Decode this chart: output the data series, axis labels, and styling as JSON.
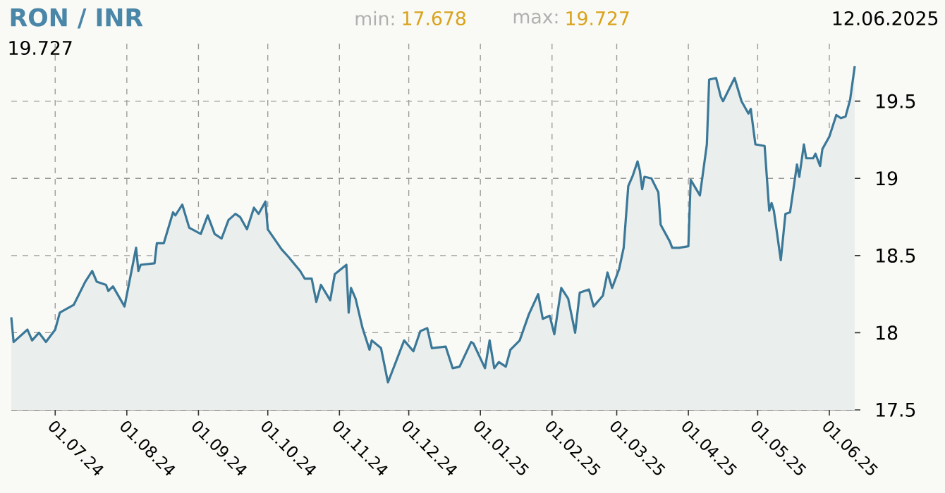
{
  "chart_data": {
    "type": "area",
    "title": "RON / INR",
    "annotations": [
      "min:",
      "17.678",
      "max:",
      "19.727",
      "12.06.2025",
      "19.727"
    ],
    "x": [
      "2024-06-12",
      "2024-06-13",
      "2024-06-19",
      "2024-06-21",
      "2024-06-24",
      "2024-06-27",
      "2024-07-01",
      "2024-07-03",
      "2024-07-09",
      "2024-07-14",
      "2024-07-17",
      "2024-07-19",
      "2024-07-23",
      "2024-07-24",
      "2024-07-26",
      "2024-07-31",
      "2024-08-05",
      "2024-08-06",
      "2024-08-07",
      "2024-08-13",
      "2024-08-14",
      "2024-08-17",
      "2024-08-21",
      "2024-08-22",
      "2024-08-25",
      "2024-08-28",
      "2024-09-02",
      "2024-09-05",
      "2024-09-08",
      "2024-09-11",
      "2024-09-14",
      "2024-09-17",
      "2024-09-19",
      "2024-09-22",
      "2024-09-25",
      "2024-09-27",
      "2024-09-30",
      "2024-10-01",
      "2024-10-07",
      "2024-10-10",
      "2024-10-15",
      "2024-10-17",
      "2024-10-20",
      "2024-10-22",
      "2024-10-24",
      "2024-10-28",
      "2024-10-30",
      "2024-11-04",
      "2024-11-05",
      "2024-11-06",
      "2024-11-08",
      "2024-11-11",
      "2024-11-14",
      "2024-11-15",
      "2024-11-19",
      "2024-11-22",
      "2024-11-29",
      "2024-12-03",
      "2024-12-06",
      "2024-12-09",
      "2024-12-11",
      "2024-12-17",
      "2024-12-20",
      "2024-12-23",
      "2024-12-28",
      "2024-12-29",
      "2025-01-03",
      "2025-01-05",
      "2025-01-07",
      "2025-01-09",
      "2025-01-12",
      "2025-01-14",
      "2025-01-18",
      "2025-01-22",
      "2025-01-26",
      "2025-01-28",
      "2025-01-31",
      "2025-02-02",
      "2025-02-05",
      "2025-02-08",
      "2025-02-11",
      "2025-02-13",
      "2025-02-17",
      "2025-02-19",
      "2025-02-23",
      "2025-02-25",
      "2025-02-27",
      "2025-03-02",
      "2025-03-04",
      "2025-03-06",
      "2025-03-08",
      "2025-03-10",
      "2025-03-11",
      "2025-03-12",
      "2025-03-13",
      "2025-03-16",
      "2025-03-19",
      "2025-03-20",
      "2025-03-24",
      "2025-03-25",
      "2025-03-28",
      "2025-04-01",
      "2025-04-02",
      "2025-04-06",
      "2025-04-09",
      "2025-04-10",
      "2025-04-13",
      "2025-04-15",
      "2025-04-16",
      "2025-04-21",
      "2025-04-24",
      "2025-04-27",
      "2025-04-28",
      "2025-04-30",
      "2025-05-04",
      "2025-05-06",
      "2025-05-07",
      "2025-05-08",
      "2025-05-11",
      "2025-05-13",
      "2025-05-15",
      "2025-05-18",
      "2025-05-19",
      "2025-05-21",
      "2025-05-22",
      "2025-05-25",
      "2025-05-26",
      "2025-05-28",
      "2025-05-29",
      "2025-06-01",
      "2025-06-04",
      "2025-06-06",
      "2025-06-08",
      "2025-06-10",
      "2025-06-12"
    ],
    "series": [
      {
        "color": "#3b7898",
        "values": [
          18.1,
          17.94,
          18.02,
          17.95,
          18.0,
          17.94,
          18.02,
          18.13,
          18.18,
          18.33,
          18.4,
          18.33,
          18.31,
          18.27,
          18.3,
          18.17,
          18.55,
          18.4,
          18.44,
          18.45,
          18.58,
          18.58,
          18.78,
          18.76,
          18.83,
          18.68,
          18.64,
          18.76,
          18.64,
          18.61,
          18.73,
          18.77,
          18.75,
          18.67,
          18.81,
          18.77,
          18.85,
          18.67,
          18.54,
          18.49,
          18.4,
          18.35,
          18.35,
          18.2,
          18.31,
          18.21,
          18.38,
          18.44,
          18.13,
          18.29,
          18.22,
          18.03,
          17.89,
          17.95,
          17.9,
          17.678,
          17.95,
          17.88,
          18.01,
          18.03,
          17.9,
          17.91,
          17.77,
          17.78,
          17.94,
          17.93,
          17.77,
          17.95,
          17.77,
          17.81,
          17.78,
          17.89,
          17.95,
          18.12,
          18.25,
          18.09,
          18.11,
          17.99,
          18.29,
          18.22,
          18.0,
          18.26,
          18.28,
          18.17,
          18.24,
          18.39,
          18.29,
          18.41,
          18.55,
          18.95,
          19.02,
          19.11,
          19.05,
          18.93,
          19.01,
          19.0,
          18.91,
          18.7,
          18.59,
          18.55,
          18.55,
          18.56,
          18.99,
          18.89,
          19.22,
          19.64,
          19.65,
          19.53,
          19.5,
          19.65,
          19.5,
          19.42,
          19.45,
          19.22,
          19.21,
          18.79,
          18.84,
          18.79,
          18.47,
          18.77,
          18.78,
          19.09,
          19.01,
          19.22,
          19.13,
          19.13,
          19.16,
          19.08,
          19.19,
          19.27,
          19.41,
          19.39,
          19.4,
          19.51,
          19.727
        ]
      }
    ],
    "xlim": [
      "2024-06-12",
      "2025-06-12"
    ],
    "xticks": [
      {
        "value": "2024-07-01",
        "label": "01.07.24"
      },
      {
        "value": "2024-08-01",
        "label": "01.08.24"
      },
      {
        "value": "2024-09-01",
        "label": "01.09.24"
      },
      {
        "value": "2024-10-01",
        "label": "01.10.24"
      },
      {
        "value": "2024-11-01",
        "label": "01.11.24"
      },
      {
        "value": "2024-12-01",
        "label": "01.12.24"
      },
      {
        "value": "2025-01-01",
        "label": "01.01.25"
      },
      {
        "value": "2025-02-01",
        "label": "01.02.25"
      },
      {
        "value": "2025-03-01",
        "label": "01.03.25"
      },
      {
        "value": "2025-04-01",
        "label": "01.04.25"
      },
      {
        "value": "2025-05-01",
        "label": "01.05.25"
      },
      {
        "value": "2025-06-01",
        "label": "01.06.25"
      }
    ],
    "ylim": [
      17.5,
      19.9
    ],
    "yticks": [
      17.5,
      18,
      18.5,
      19,
      19.5
    ],
    "grid": true
  }
}
